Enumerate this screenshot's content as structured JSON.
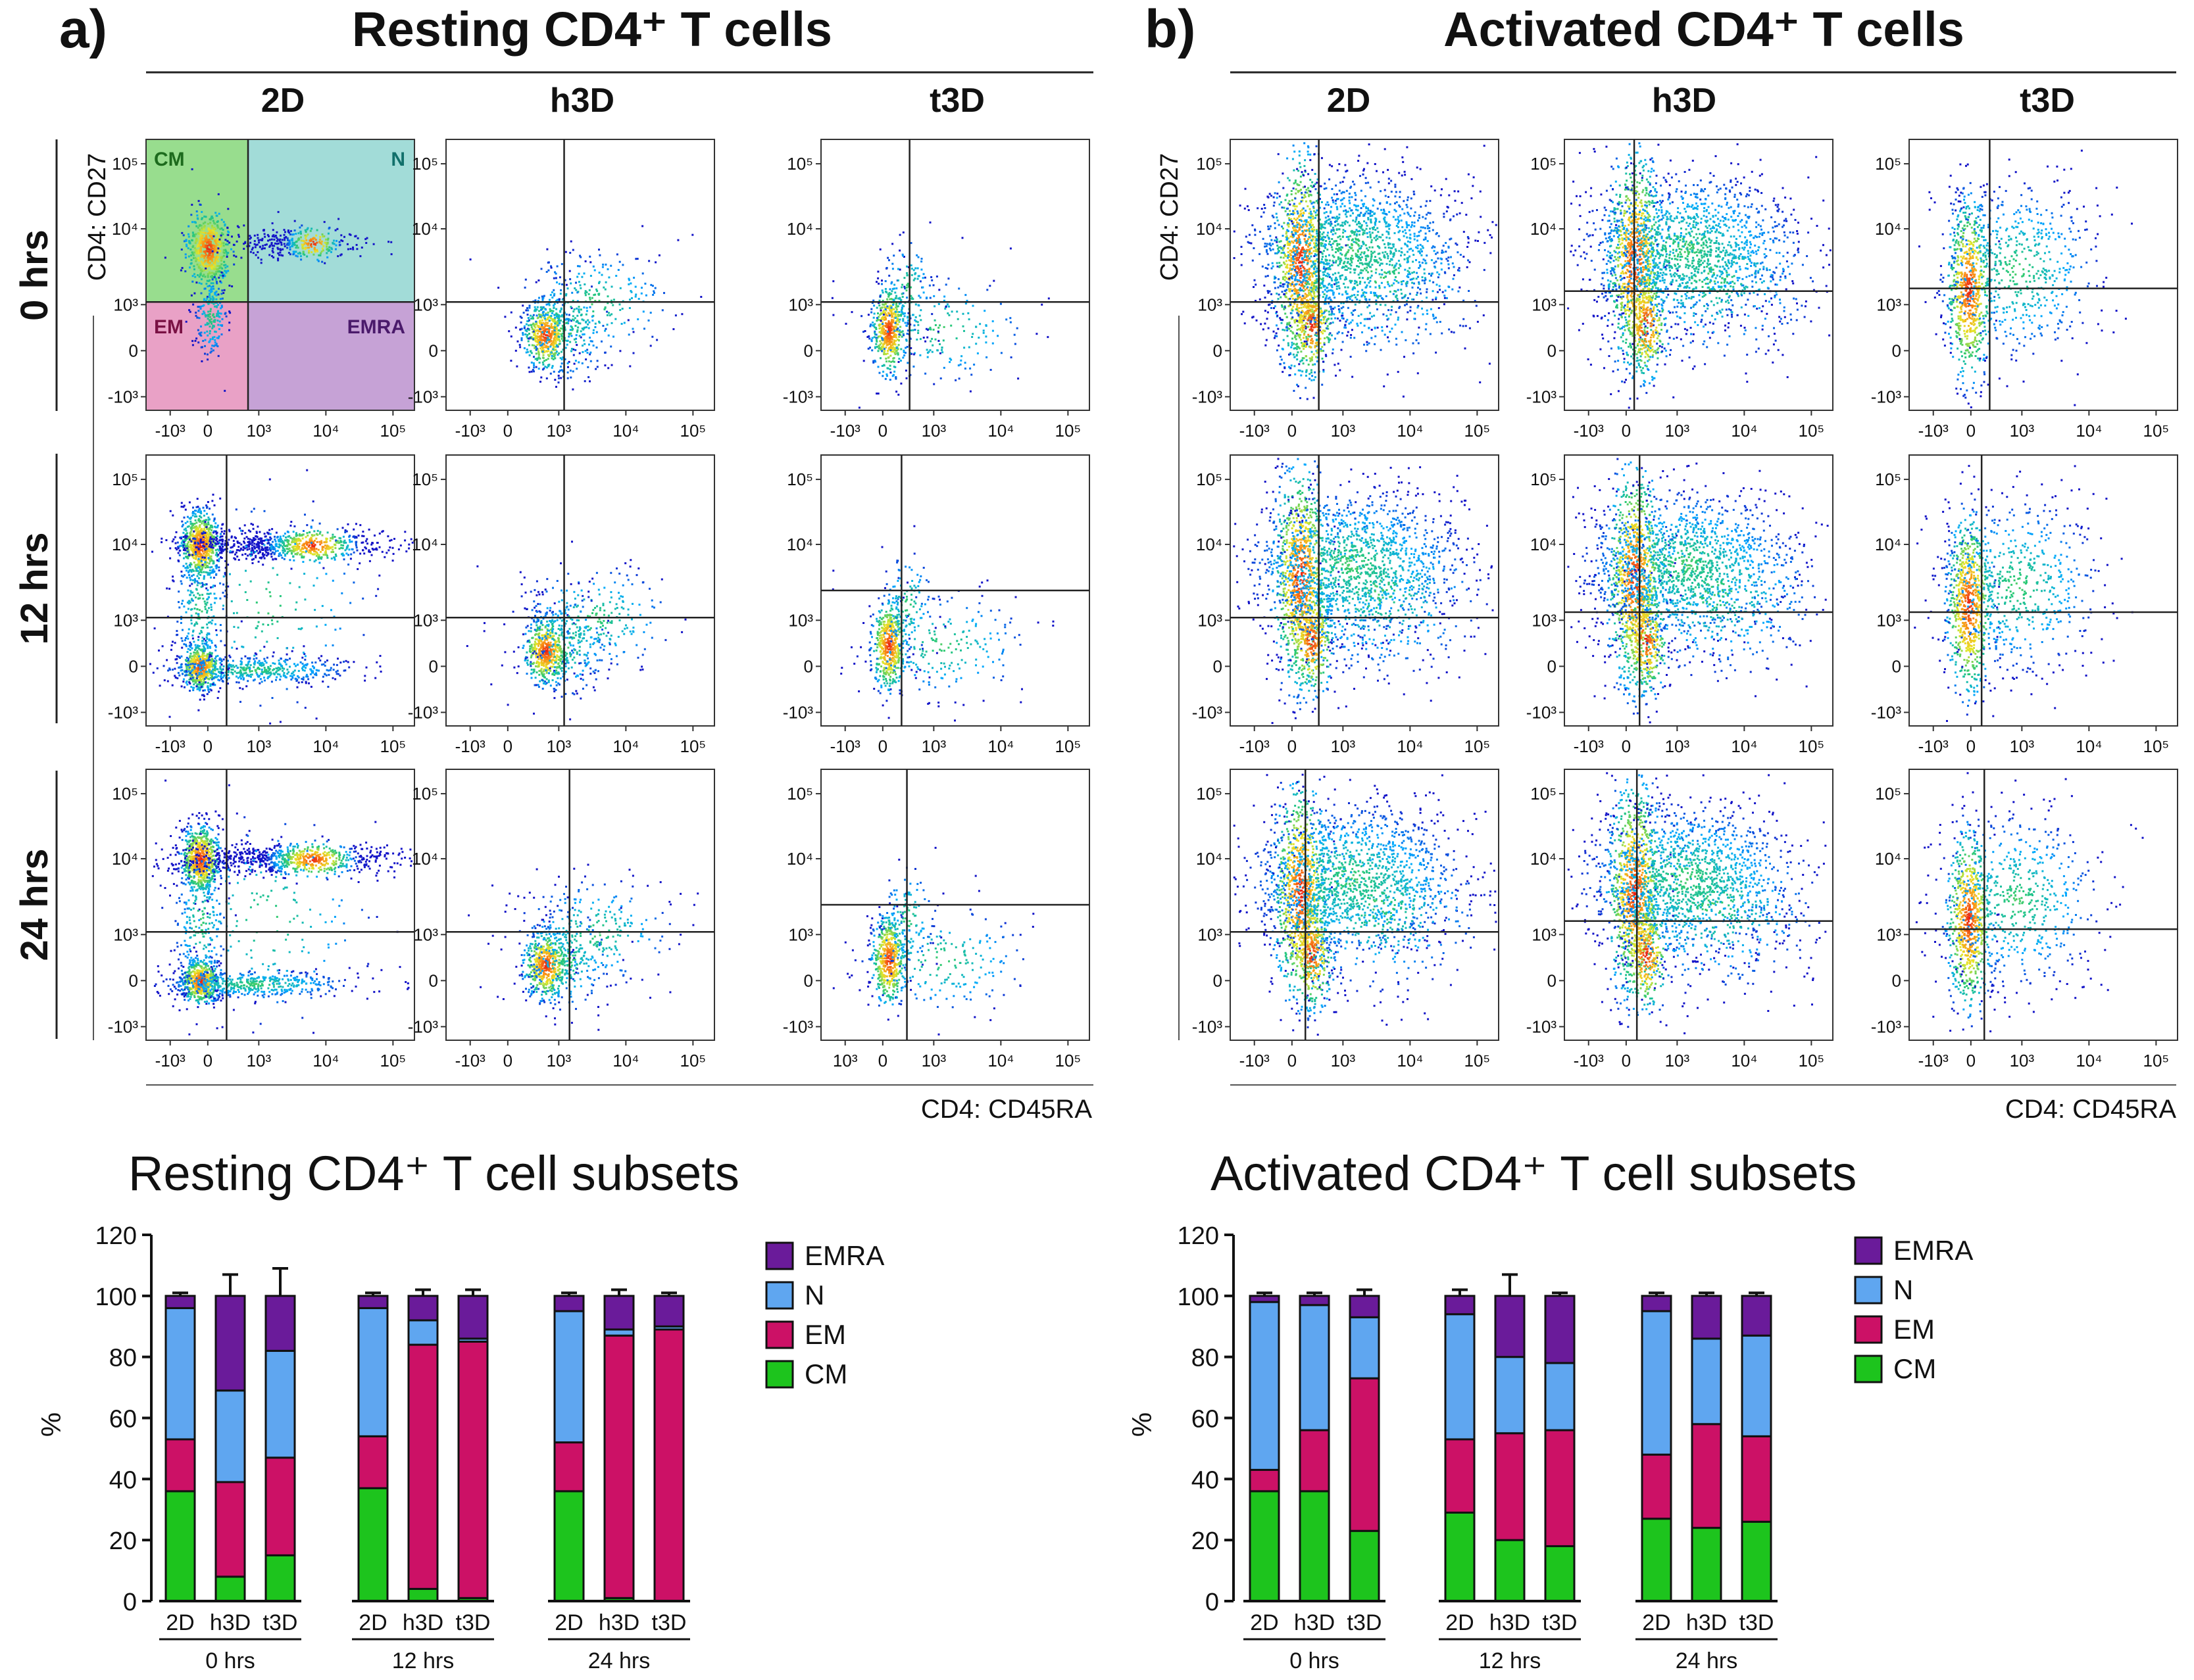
{
  "figure": {
    "panel_letters": [
      "a)",
      "b)"
    ],
    "panel_titles": [
      "Resting CD4⁺ T cells",
      "Activated CD4⁺ T cells"
    ],
    "conditions": [
      "2D",
      "h3D",
      "t3D"
    ],
    "timepoints": [
      "0 hrs",
      "12 hrs",
      "24 hrs"
    ],
    "x_axis_label": "CD4: CD45RA",
    "y_axis_label": "CD4: CD27",
    "quadrant_labels": [
      "CM",
      "N",
      "EM",
      "EMRA"
    ],
    "y_tick_labels": [
      "10⁵",
      "10⁴",
      "10³",
      "0",
      "-10³"
    ],
    "x_tick_labels": [
      "-10³",
      "0",
      "10³",
      "10⁴",
      "10⁵"
    ],
    "x_tick_labels_alt": [
      "10³",
      "0",
      "10³",
      "10⁴",
      "10⁵"
    ]
  },
  "chart_data": [
    {
      "type": "bar",
      "stacked": true,
      "title": "Resting CD4⁺ T cell subsets",
      "ylabel": "%",
      "ylim": [
        0,
        120
      ],
      "yticks": [
        0,
        20,
        40,
        60,
        80,
        100,
        120
      ],
      "groups": [
        "0 hrs",
        "12 hrs",
        "24 hrs"
      ],
      "categories": [
        "2D",
        "h3D",
        "t3D",
        "2D",
        "h3D",
        "t3D",
        "2D",
        "h3D",
        "t3D"
      ],
      "series": [
        {
          "name": "CM",
          "color": "#1dc41d",
          "values": [
            36,
            8,
            15,
            37,
            4,
            1,
            36,
            1,
            0
          ],
          "errors": [
            2,
            3,
            8,
            2,
            2,
            1,
            2,
            1,
            0
          ]
        },
        {
          "name": "EM",
          "color": "#cc1166",
          "values": [
            17,
            31,
            32,
            17,
            80,
            84,
            16,
            86,
            89
          ],
          "errors": [
            1,
            4,
            8,
            1,
            1,
            2,
            1,
            1,
            1
          ]
        },
        {
          "name": "N",
          "color": "#5fa6f0",
          "values": [
            43,
            30,
            35,
            42,
            8,
            1,
            43,
            2,
            1
          ],
          "errors": [
            2,
            8,
            11,
            1,
            2,
            1,
            1,
            2,
            1
          ]
        },
        {
          "name": "EMRA",
          "color": "#6a1b9a",
          "values": [
            4,
            31,
            18,
            4,
            8,
            14,
            5,
            11,
            10
          ],
          "errors": [
            1,
            7,
            9,
            1,
            2,
            2,
            1,
            2,
            1
          ]
        }
      ]
    },
    {
      "type": "bar",
      "stacked": true,
      "title": "Activated CD4⁺ T cell subsets",
      "ylabel": "%",
      "ylim": [
        0,
        120
      ],
      "yticks": [
        0,
        20,
        40,
        60,
        80,
        100,
        120
      ],
      "groups": [
        "0 hrs",
        "12 hrs",
        "24 hrs"
      ],
      "categories": [
        "2D",
        "h3D",
        "t3D",
        "2D",
        "h3D",
        "t3D",
        "2D",
        "h3D",
        "t3D"
      ],
      "series": [
        {
          "name": "CM",
          "color": "#1dc41d",
          "values": [
            36,
            36,
            23,
            29,
            20,
            18,
            27,
            24,
            26
          ],
          "errors": [
            1,
            1,
            2,
            1,
            6,
            1,
            1,
            1,
            2
          ]
        },
        {
          "name": "EM",
          "color": "#cc1166",
          "values": [
            7,
            20,
            50,
            24,
            35,
            38,
            21,
            34,
            28
          ],
          "errors": [
            1,
            1,
            4,
            3,
            9,
            1,
            1,
            2,
            1
          ]
        },
        {
          "name": "N",
          "color": "#5fa6f0",
          "values": [
            55,
            41,
            20,
            41,
            25,
            22,
            47,
            28,
            33
          ],
          "errors": [
            1,
            1,
            2,
            1,
            3,
            1,
            1,
            1,
            1
          ]
        },
        {
          "name": "EMRA",
          "color": "#6a1b9a",
          "values": [
            2,
            3,
            7,
            6,
            20,
            22,
            5,
            14,
            13
          ],
          "errors": [
            1,
            1,
            2,
            2,
            7,
            1,
            1,
            1,
            1
          ]
        }
      ]
    }
  ]
}
